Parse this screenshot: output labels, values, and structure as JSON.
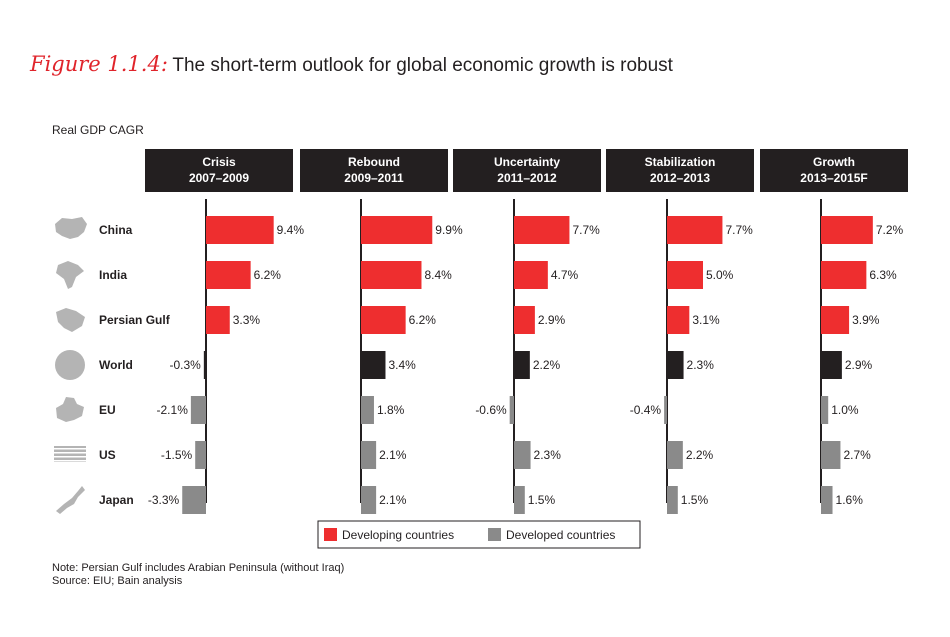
{
  "figure": {
    "label": "Figure 1.1.4:",
    "title": "The short-term outlook for global economic growth is robust"
  },
  "notes": {
    "note": "Note:  Persian Gulf includes Arabian Peninsula (without Iraq)",
    "source": "Source:  EIU; Bain analysis"
  },
  "colors": {
    "developing": "#ee2e2f",
    "developed": "#8a8a8a",
    "world": "#231f20",
    "header_bg": "#231f20",
    "header_text": "#ffffff",
    "icon": "#b4b4b4"
  },
  "chart_data": {
    "type": "bar",
    "ylabel": "Real GDP CAGR",
    "value_format": "percent",
    "categories": [
      "China",
      "India",
      "Persian Gulf",
      "World",
      "EU",
      "US",
      "Japan"
    ],
    "category_icons": [
      "china-map-icon",
      "india-map-icon",
      "persian-gulf-map-icon",
      "globe-icon",
      "eu-map-icon",
      "us-flag-icon",
      "japan-map-icon"
    ],
    "category_group": [
      "Developing countries",
      "Developing countries",
      "Developing countries",
      "World",
      "Developed countries",
      "Developed countries",
      "Developed countries"
    ],
    "panels": [
      {
        "name": "Crisis",
        "period": "2007–2009",
        "values": [
          9.4,
          6.2,
          3.3,
          -0.3,
          -2.1,
          -1.5,
          -3.3
        ]
      },
      {
        "name": "Rebound",
        "period": "2009–2011",
        "values": [
          9.9,
          8.4,
          6.2,
          3.4,
          1.8,
          2.1,
          2.1
        ]
      },
      {
        "name": "Uncertainty",
        "period": "2011–2012",
        "values": [
          7.7,
          4.7,
          2.9,
          2.2,
          -0.6,
          2.3,
          1.5
        ]
      },
      {
        "name": "Stabilization",
        "period": "2012–2013",
        "values": [
          7.7,
          5.0,
          3.1,
          2.3,
          -0.4,
          2.2,
          1.5
        ]
      },
      {
        "name": "Growth",
        "period": "2013–2015F",
        "values": [
          7.2,
          6.3,
          3.9,
          2.9,
          1.0,
          2.7,
          1.6
        ]
      }
    ],
    "legend": {
      "placement": "bottom",
      "entries": [
        {
          "label": "Developing countries",
          "color": "#ee2e2f"
        },
        {
          "label": "Developed countries",
          "color": "#8a8a8a"
        }
      ]
    }
  }
}
